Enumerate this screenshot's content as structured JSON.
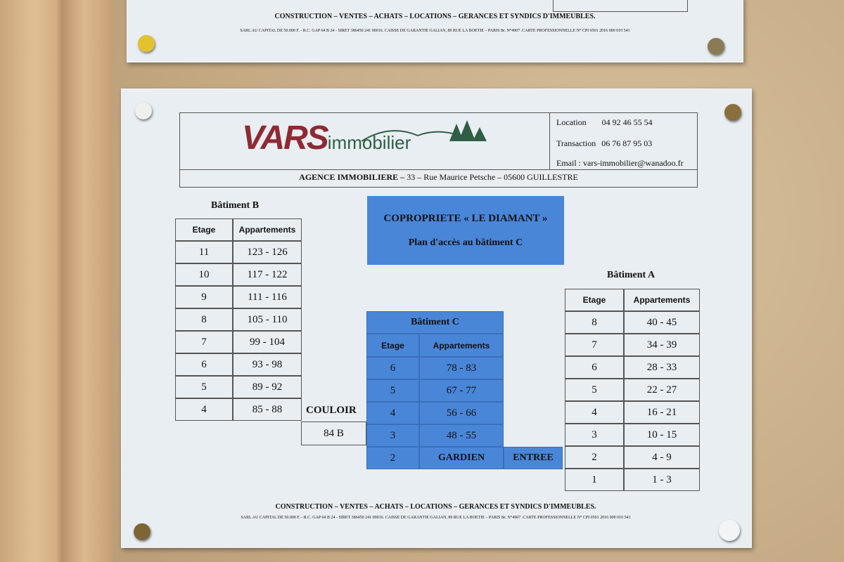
{
  "footer": {
    "activities": "CONSTRUCTION – VENTES – ACHATS – LOCATIONS – GERANCES ET SYNDICS D'IMMEUBLES.",
    "legal": "SARL AU CAPITAL DE 50.000 F. - R.C. GAP 64 B 24 - SIRET 386450 241 00016. CAISSE DE GARANTIE GALIAN, 89 RUE LA BOETIE – PARIS 8e. N°4907 .CARTE PROFESSIONNELLE N° CPI 0501 2016 000 010 541"
  },
  "header": {
    "logo_main": "VARS",
    "logo_sub": "immobilier",
    "location_label": "Location",
    "location_phone": "04 92 46 55 54",
    "transaction_label": "Transaction",
    "transaction_phone": "06 76 87 95 03",
    "email": "Email : vars-immobilier@wanadoo.fr",
    "agency": "AGENCE  IMMOBILIERE –",
    "address": " 33 – Rue Maurice Petsche – 05600  GUILLESTRE"
  },
  "notice": {
    "title": "COPROPRIETE « LE DIAMANT »",
    "subtitle": "Plan d'accès au bâtiment C"
  },
  "batiment_b": {
    "title": "Bâtiment B",
    "headers": [
      "Etage",
      "Appartements"
    ],
    "rows": [
      [
        "11",
        "123 - 126"
      ],
      [
        "10",
        "117 - 122"
      ],
      [
        "9",
        "111 - 116"
      ],
      [
        "8",
        "105 - 110"
      ],
      [
        "7",
        "99 - 104"
      ],
      [
        "6",
        "93 - 98"
      ],
      [
        "5",
        "89 - 92"
      ],
      [
        "4",
        "85 - 88"
      ]
    ]
  },
  "couloir": "COULOIR",
  "couloir_84b": "84 B",
  "batiment_c": {
    "title": "Bâtiment C",
    "headers": [
      "Etage",
      "Appartements"
    ],
    "rows": [
      [
        "6",
        "78 - 83"
      ],
      [
        "5",
        "67 - 77"
      ],
      [
        "4",
        "56 - 66"
      ],
      [
        "3",
        "48 - 55"
      ],
      [
        "2",
        "GARDIEN"
      ]
    ],
    "entree": "ENTREE"
  },
  "batiment_a": {
    "title": "Bâtiment A",
    "headers": [
      "Etage",
      "Appartements"
    ],
    "rows": [
      [
        "8",
        "40 - 45"
      ],
      [
        "7",
        "34 - 39"
      ],
      [
        "6",
        "28 - 33"
      ],
      [
        "5",
        "22 - 27"
      ],
      [
        "4",
        "16 - 21"
      ],
      [
        "3",
        "10 - 15"
      ],
      [
        "2",
        "4 - 9"
      ],
      [
        "1",
        "1 - 3"
      ]
    ]
  },
  "colors": {
    "blue_cells": "#4a86d8",
    "logo_red": "#8e2a33",
    "logo_green": "#2f5e45",
    "paper": "#e9eef2",
    "cork": "#c7ad86"
  }
}
